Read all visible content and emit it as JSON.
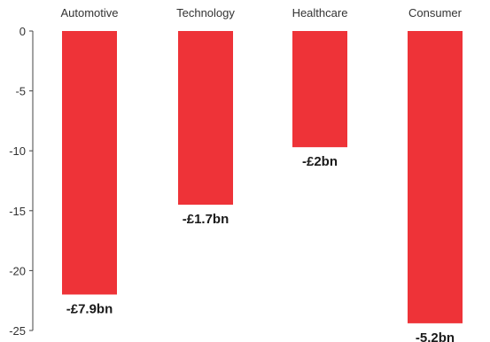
{
  "chart_data": {
    "type": "bar",
    "categories": [
      "Automotive",
      "Technology",
      "Healthcare",
      "Consumer"
    ],
    "values": [
      -22,
      -14.5,
      -9.7,
      -24.4
    ],
    "data_labels": [
      "-£7.9bn",
      "-£1.7bn",
      "-£2bn",
      "-5.2bn"
    ],
    "ylim": [
      -25,
      0
    ],
    "yticks": [
      0,
      -5,
      -10,
      -15,
      -20,
      -25
    ],
    "ytick_labels": [
      "0",
      "-5",
      "-10",
      "-15",
      "-20",
      "-25"
    ],
    "category_axis_position": "top",
    "grid": false,
    "bar_color": "#ee3338",
    "axis_color": "#444444"
  }
}
